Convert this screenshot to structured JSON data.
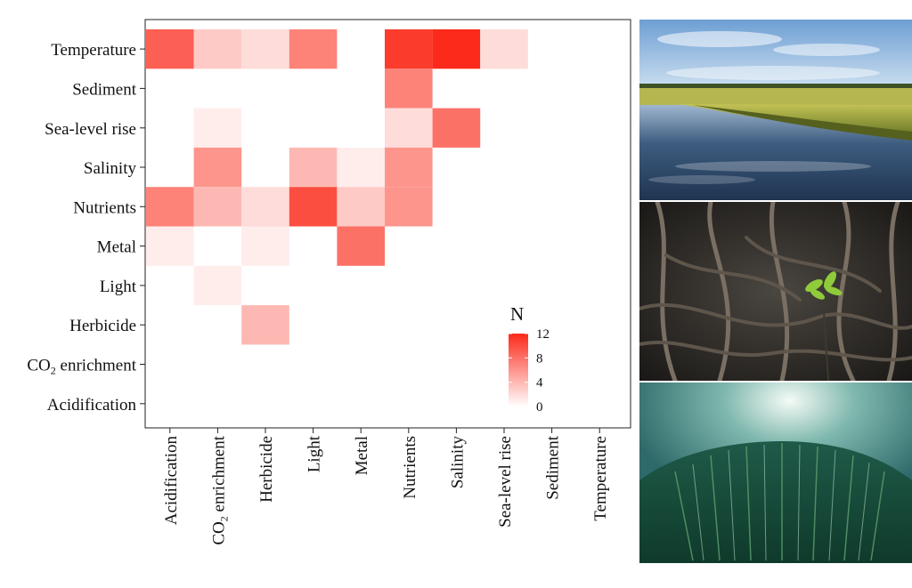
{
  "chart_data": {
    "type": "heatmap",
    "x_categories": [
      "Acidification",
      "CO2 enrichment",
      "Herbicide",
      "Light",
      "Metal",
      "Nutrients",
      "Salinity",
      "Sea-level rise",
      "Sediment",
      "Temperature"
    ],
    "x_tick_labels": [
      {
        "text": "Acidification"
      },
      {
        "text": "CO",
        "sub": "2",
        "tail": " enrichment"
      },
      {
        "text": "Herbicide"
      },
      {
        "text": "Light"
      },
      {
        "text": "Metal"
      },
      {
        "text": "Nutrients"
      },
      {
        "text": "Salinity"
      },
      {
        "text": "Sea-level rise"
      },
      {
        "text": "Sediment"
      },
      {
        "text": "Temperature"
      }
    ],
    "y_categories_top_to_bottom": [
      "Temperature",
      "Sediment",
      "Sea-level rise",
      "Salinity",
      "Nutrients",
      "Metal",
      "Light",
      "Herbicide",
      "CO2 enrichment",
      "Acidification"
    ],
    "y_tick_labels": [
      {
        "text": "Temperature"
      },
      {
        "text": "Sediment"
      },
      {
        "text": "Sea-level  rise"
      },
      {
        "text": "Salinity"
      },
      {
        "text": "Nutrients"
      },
      {
        "text": "Metal"
      },
      {
        "text": "Light"
      },
      {
        "text": "Herbicide"
      },
      {
        "text": "CO",
        "sub": "2",
        "tail": " enrichment"
      },
      {
        "text": "Acidification"
      }
    ],
    "cells": [
      {
        "x": "Acidification",
        "y": "Temperature",
        "value": 9
      },
      {
        "x": "CO2 enrichment",
        "y": "Temperature",
        "value": 3
      },
      {
        "x": "Herbicide",
        "y": "Temperature",
        "value": 2
      },
      {
        "x": "Light",
        "y": "Temperature",
        "value": 7
      },
      {
        "x": "Nutrients",
        "y": "Temperature",
        "value": 11
      },
      {
        "x": "Salinity",
        "y": "Temperature",
        "value": 12
      },
      {
        "x": "Sea-level rise",
        "y": "Temperature",
        "value": 2
      },
      {
        "x": "Nutrients",
        "y": "Sediment",
        "value": 7
      },
      {
        "x": "CO2 enrichment",
        "y": "Sea-level rise",
        "value": 1
      },
      {
        "x": "Nutrients",
        "y": "Sea-level rise",
        "value": 2
      },
      {
        "x": "Salinity",
        "y": "Sea-level rise",
        "value": 8
      },
      {
        "x": "CO2 enrichment",
        "y": "Salinity",
        "value": 6
      },
      {
        "x": "Light",
        "y": "Salinity",
        "value": 4
      },
      {
        "x": "Metal",
        "y": "Salinity",
        "value": 1
      },
      {
        "x": "Nutrients",
        "y": "Salinity",
        "value": 6
      },
      {
        "x": "Acidification",
        "y": "Nutrients",
        "value": 7
      },
      {
        "x": "CO2 enrichment",
        "y": "Nutrients",
        "value": 4
      },
      {
        "x": "Herbicide",
        "y": "Nutrients",
        "value": 2
      },
      {
        "x": "Light",
        "y": "Nutrients",
        "value": 10
      },
      {
        "x": "Metal",
        "y": "Nutrients",
        "value": 3
      },
      {
        "x": "Nutrients",
        "y": "Nutrients",
        "value": 6
      },
      {
        "x": "Acidification",
        "y": "Metal",
        "value": 1
      },
      {
        "x": "Herbicide",
        "y": "Metal",
        "value": 1
      },
      {
        "x": "Metal",
        "y": "Metal",
        "value": 8
      },
      {
        "x": "CO2 enrichment",
        "y": "Light",
        "value": 1
      },
      {
        "x": "Herbicide",
        "y": "Herbicide",
        "value": 4
      }
    ],
    "legend": {
      "title": "N",
      "min": 0,
      "max": 12,
      "ticks": [
        0,
        4,
        8,
        12
      ],
      "low_color": "#ffffff",
      "high_color": "#fb2a1a",
      "position": "inside-bottom-right"
    },
    "grid": false
  },
  "photos": [
    {
      "icon": "salt-marsh-photo"
    },
    {
      "icon": "mangrove-photo"
    },
    {
      "icon": "seagrass-photo"
    }
  ]
}
